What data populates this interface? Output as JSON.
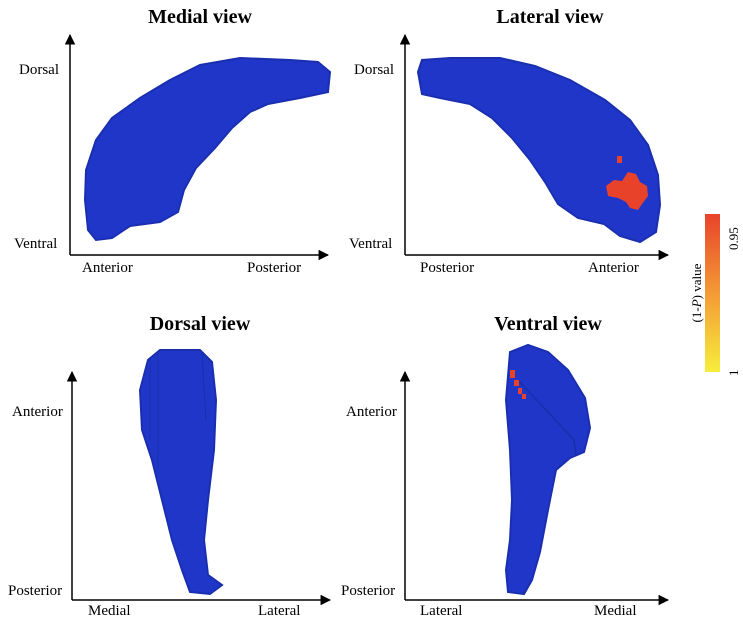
{
  "panels": {
    "medial": {
      "title": "Medial view",
      "y_top": "Dorsal",
      "y_bottom": "Ventral",
      "x_left": "Anterior",
      "x_right": "Posterior"
    },
    "lateral": {
      "title": "Lateral view",
      "y_top": "Dorsal",
      "y_bottom": "Ventral",
      "x_left": "Posterior",
      "x_right": "Anterior"
    },
    "dorsal": {
      "title": "Dorsal view",
      "y_top": "Anterior",
      "y_bottom": "Posterior",
      "x_left": "Medial",
      "x_right": "Lateral"
    },
    "ventral": {
      "title": "Ventral view",
      "y_top": "Anterior",
      "y_bottom": "Posterior",
      "x_left": "Lateral",
      "x_right": "Medial"
    }
  },
  "colorbar": {
    "label": "(1-P) value",
    "top_value": "0.95",
    "bottom_value": "1",
    "top_color": "#e8432a",
    "bottom_color": "#f6ee3c"
  },
  "colors": {
    "structure": "#1f36c9",
    "structure_edge": "#1a2fb0",
    "significant": "#e8432a"
  }
}
